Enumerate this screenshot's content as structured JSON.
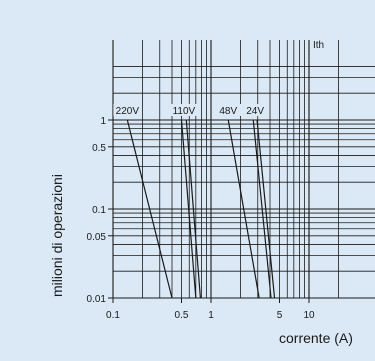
{
  "chart_data": {
    "type": "line",
    "xlabel": "corrente (A)",
    "ylabel": "milioni di operazioni",
    "x_scale": "log",
    "y_scale": "log",
    "xlim": [
      0.1,
      20
    ],
    "ylim": [
      0.01,
      4
    ],
    "x_ticks": [
      {
        "value": 0.1,
        "label": "0.1"
      },
      {
        "value": 0.5,
        "label": "0.5"
      },
      {
        "value": 1,
        "label": "1"
      },
      {
        "value": 5,
        "label": "5"
      },
      {
        "value": 10,
        "label": "10"
      }
    ],
    "y_ticks": [
      {
        "value": 0.01,
        "label": "0.01"
      },
      {
        "value": 0.05,
        "label": "0.05"
      },
      {
        "value": 0.1,
        "label": "0.1"
      },
      {
        "value": 0.5,
        "label": "0.5"
      },
      {
        "value": 1,
        "label": "1"
      }
    ],
    "grid": true,
    "series": [
      {
        "name": "220V",
        "lines": [
          {
            "x": [
              0.14,
              0.4
            ],
            "y": [
              1,
              0.01
            ]
          }
        ]
      },
      {
        "name": "110V",
        "lines": [
          {
            "x": [
              0.5,
              0.7
            ],
            "y": [
              1,
              0.01
            ]
          },
          {
            "x": [
              0.56,
              0.78
            ],
            "y": [
              1,
              0.01
            ]
          }
        ]
      },
      {
        "name": "48V",
        "lines": [
          {
            "x": [
              1.5,
              3.1
            ],
            "y": [
              1,
              0.01
            ]
          }
        ]
      },
      {
        "name": "24V",
        "lines": [
          {
            "x": [
              2.7,
              4.1
            ],
            "y": [
              1,
              0.01
            ]
          },
          {
            "x": [
              2.95,
              4.45
            ],
            "y": [
              1,
              0.01
            ]
          }
        ]
      }
    ],
    "reference_line": {
      "label": "Ith",
      "x": 10,
      "style": "dotted"
    }
  },
  "colors": {
    "background": "#dbe9f6",
    "grid": "#1a1a1a",
    "curves": "#1a1a1a"
  }
}
